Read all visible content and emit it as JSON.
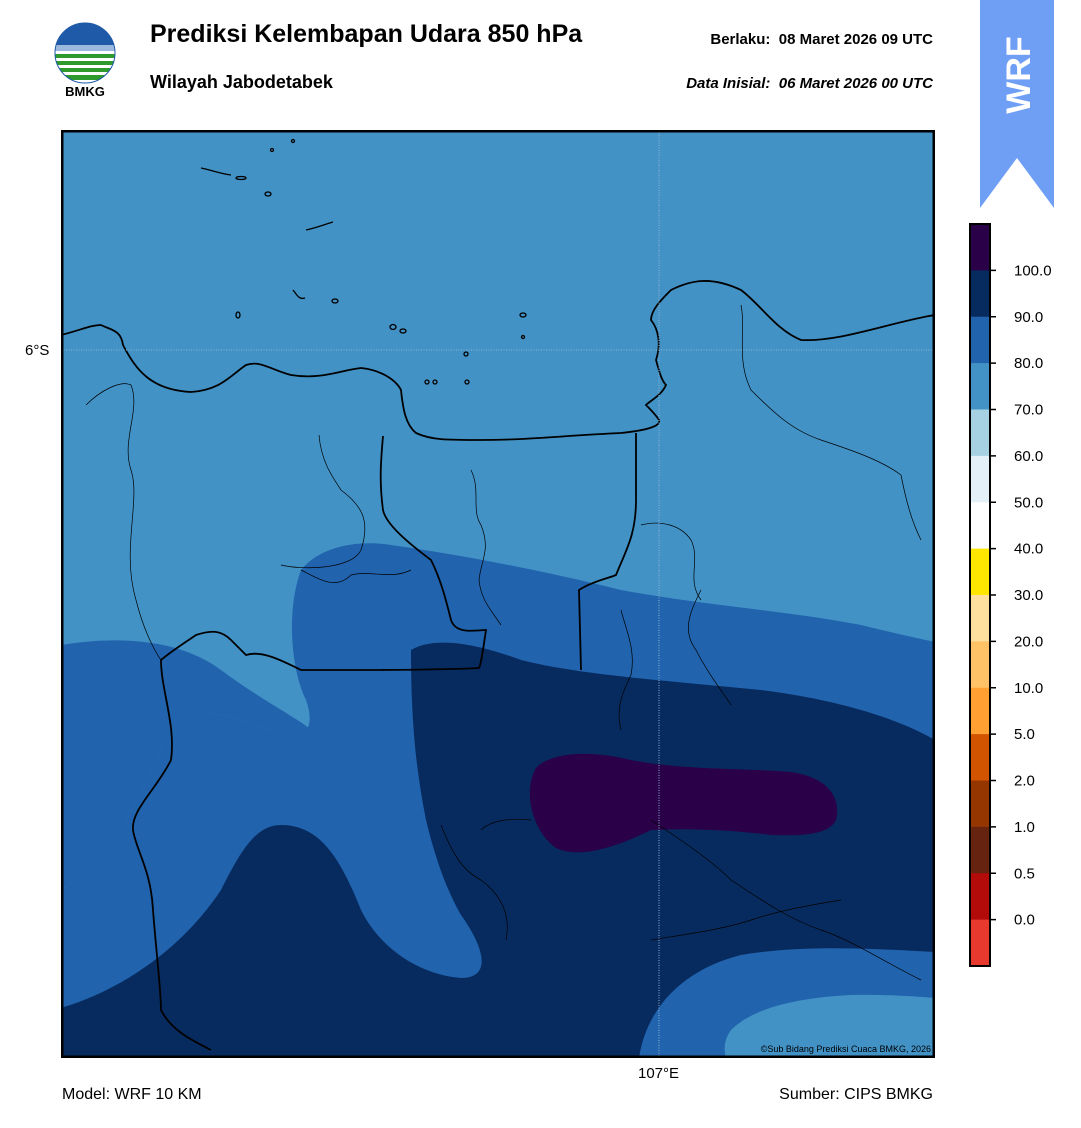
{
  "header": {
    "title": "Prediksi Kelembapan Udara 850 hPa",
    "subtitle": "Wilayah Jabodetabek",
    "valid_label": "Berlaku:",
    "valid_value": "08 Maret 2026 09 UTC",
    "init_label": "Data Inisial:",
    "init_value": "06 Maret 2026 00 UTC"
  },
  "logo": {
    "text": "BMKG",
    "icon": "bmkg-logo"
  },
  "badge": {
    "text": "WRF",
    "color": "#6f9ff5"
  },
  "map": {
    "lat_label": "6°S",
    "lon_label": "107°E",
    "copyright": "©Sub Bidang Prediksi Cuaca BMKG, 2026"
  },
  "footer": {
    "model": "Model: WRF 10 KM",
    "source": "Sumber: CIPS BMKG"
  },
  "colorbar": {
    "labels": [
      "100.0",
      "90.0",
      "80.0",
      "70.0",
      "60.0",
      "50.0",
      "40.0",
      "30.0",
      "20.0",
      "10.0",
      "5.0",
      "2.0",
      "1.0",
      "0.5",
      "0.0"
    ],
    "colors": [
      "#2a0048",
      "#082b5f",
      "#2163ad",
      "#4292c6",
      "#a6d1e3",
      "#e4f0f8",
      "#ffffff",
      "#ffe600",
      "#ffdf9e",
      "#ffc266",
      "#ffa033",
      "#d35400",
      "#953500",
      "#652310",
      "#b30a0a",
      "#e8392f"
    ]
  }
}
